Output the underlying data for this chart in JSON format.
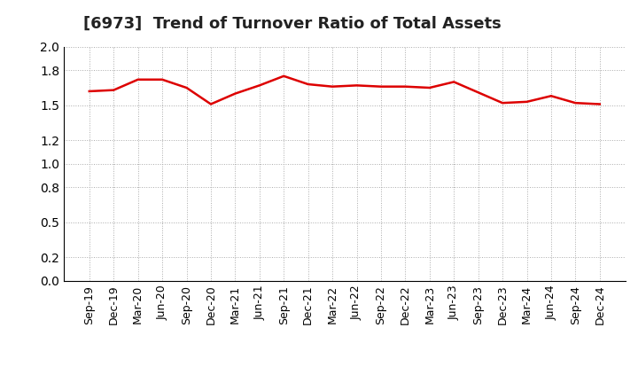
{
  "title": "[6973]  Trend of Turnover Ratio of Total Assets",
  "line_color": "#dd0000",
  "line_width": 1.8,
  "background_color": "#ffffff",
  "grid_color": "#aaaaaa",
  "ylim": [
    0.0,
    2.0
  ],
  "yticks": [
    0.0,
    0.2,
    0.5,
    0.8,
    1.0,
    1.2,
    1.5,
    1.8,
    2.0
  ],
  "labels": [
    "Sep-19",
    "Dec-19",
    "Mar-20",
    "Jun-20",
    "Sep-20",
    "Dec-20",
    "Mar-21",
    "Jun-21",
    "Sep-21",
    "Dec-21",
    "Mar-22",
    "Jun-22",
    "Sep-22",
    "Dec-22",
    "Mar-23",
    "Jun-23",
    "Sep-23",
    "Dec-23",
    "Mar-24",
    "Jun-24",
    "Sep-24",
    "Dec-24"
  ],
  "values": [
    1.62,
    1.63,
    1.72,
    1.72,
    1.65,
    1.51,
    1.6,
    1.67,
    1.75,
    1.68,
    1.66,
    1.67,
    1.66,
    1.66,
    1.65,
    1.7,
    1.61,
    1.52,
    1.53,
    1.58,
    1.52,
    1.51
  ],
  "title_fontsize": 13,
  "tick_fontsize": 9,
  "ytick_fontsize": 10
}
